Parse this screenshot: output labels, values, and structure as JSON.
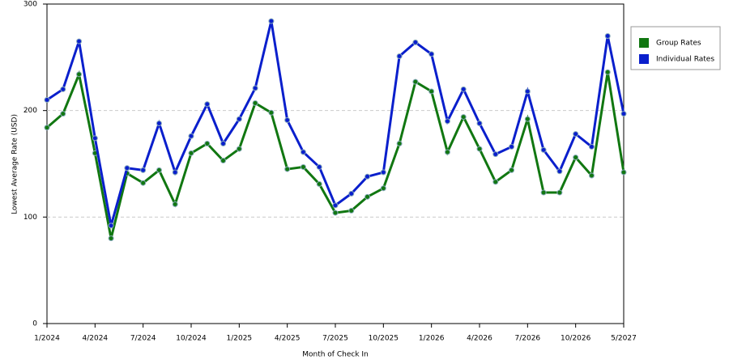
{
  "chart_data": {
    "type": "line",
    "x_label": "Month of Check In",
    "y_label": "Lowest Average Rate (USD)",
    "categories": [
      "1/2024",
      null,
      null,
      "4/2024",
      null,
      null,
      "7/2024",
      null,
      null,
      "10/2024",
      null,
      null,
      "1/2025",
      null,
      null,
      "4/2025",
      null,
      null,
      "7/2025",
      null,
      null,
      "10/2025",
      null,
      null,
      "1/2026",
      null,
      null,
      "4/2026",
      null,
      null,
      "7/2026",
      null,
      null,
      "10/2026",
      null,
      null,
      "5/2027"
    ],
    "series": [
      {
        "name": "Group Rates",
        "color": "#117711",
        "values": [
          184,
          197,
          234,
          160,
          80,
          141,
          132,
          144,
          112,
          160,
          169,
          153,
          164,
          207,
          198,
          145,
          147,
          131,
          104,
          106,
          119,
          127,
          169,
          227,
          218,
          161,
          194,
          164,
          133,
          144,
          192,
          123,
          123,
          156,
          139,
          236,
          142
        ]
      },
      {
        "name": "Individual Rates",
        "color": "#0a1fcc",
        "values": [
          210,
          220,
          265,
          174,
          92,
          146,
          144,
          188,
          142,
          176,
          206,
          169,
          192,
          221,
          284,
          191,
          161,
          147,
          111,
          122,
          138,
          142,
          251,
          264,
          253,
          190,
          220,
          188,
          159,
          166,
          218,
          163,
          143,
          178,
          166,
          270,
          197
        ]
      }
    ],
    "ylim": [
      0,
      300
    ],
    "yticks": [
      0,
      100,
      200,
      300
    ],
    "grid": true,
    "legend": "right"
  }
}
